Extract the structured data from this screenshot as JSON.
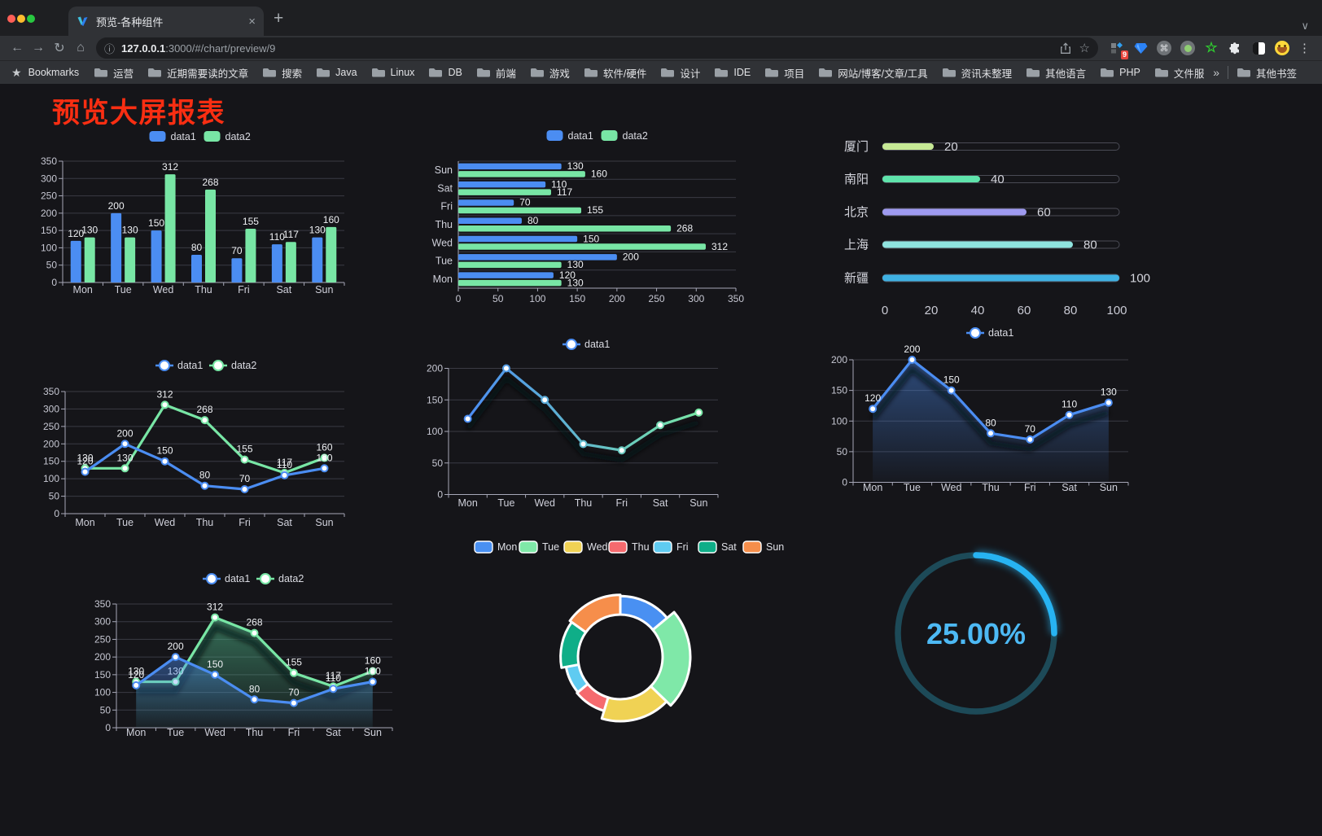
{
  "browser": {
    "tab_title": "预览-各种组件",
    "close_glyph": "×",
    "new_tab_glyph": "+",
    "chevron_glyph": "∨",
    "nav": {
      "back": "←",
      "forward": "→",
      "reload": "↻",
      "home": "⌂"
    },
    "url": {
      "info_glyph": "ⓘ",
      "host": "127.0.0.1",
      "rest": ":3000/#/chart/preview/9"
    },
    "actions": {
      "star": "☆",
      "menu": "⋮"
    },
    "extensions_badge": "9",
    "bookmarks_bar": {
      "star_glyph": "★",
      "label": "Bookmarks",
      "items": [
        "运营",
        "近期需要读的文章",
        "搜索",
        "Java",
        "Linux",
        "DB",
        "前端",
        "游戏",
        "软件/硬件",
        "设计",
        "IDE",
        "项目",
        "网站/博客/文章/工具",
        "资讯未整理",
        "其他语言",
        "PHP",
        "文件服务器"
      ],
      "overflow_glyph": "»",
      "other_bookmarks": "其他书签"
    }
  },
  "page": {
    "title": "预览大屏报表",
    "title_color": "#f92e12"
  },
  "chart_data": {
    "categories": [
      "Mon",
      "Tue",
      "Wed",
      "Thu",
      "Fri",
      "Sat",
      "Sun"
    ],
    "series": {
      "data1": [
        120,
        200,
        150,
        80,
        70,
        110,
        130
      ],
      "data2": [
        130,
        130,
        312,
        268,
        155,
        117,
        160
      ]
    },
    "colors": {
      "data1": "#4b8df2",
      "data2": "#78e6a5"
    },
    "bar_grouped": {
      "type": "bar",
      "legend": [
        "data1",
        "data2"
      ],
      "ylim": [
        0,
        350
      ],
      "yticks": [
        0,
        50,
        100,
        150,
        200,
        250,
        300,
        350
      ]
    },
    "bar_horizontal": {
      "type": "bar",
      "legend": [
        "data1",
        "data2"
      ],
      "orientation": "horizontal",
      "categories_top_to_bottom": [
        "Sun",
        "Sat",
        "Fri",
        "Thu",
        "Wed",
        "Tue",
        "Mon"
      ],
      "xlim": [
        0,
        350
      ],
      "xticks": [
        0,
        50,
        100,
        150,
        200,
        250,
        300,
        350
      ]
    },
    "progress_bars": {
      "type": "bar",
      "orientation": "horizontal",
      "xlim": [
        0,
        100
      ],
      "xticks": [
        0,
        20,
        40,
        60,
        80,
        100
      ],
      "rows": [
        {
          "label": "厦门",
          "value": 20,
          "color": "#c6e995"
        },
        {
          "label": "南阳",
          "value": 40,
          "color": "#5fe3ab"
        },
        {
          "label": "北京",
          "value": 60,
          "color": "#9e9af0"
        },
        {
          "label": "上海",
          "value": 80,
          "color": "#8fe3df"
        },
        {
          "label": "新疆",
          "value": 100,
          "color": "#3fb1e3"
        }
      ]
    },
    "line_two": {
      "type": "line",
      "legend": [
        "data1",
        "data2"
      ],
      "ylim": [
        0,
        350
      ],
      "yticks": [
        0,
        50,
        100,
        150,
        200,
        250,
        300,
        350
      ],
      "labels": true
    },
    "line_gradient": {
      "type": "line",
      "legend": [
        "data1"
      ],
      "ylim": [
        0,
        200
      ],
      "yticks": [
        0,
        50,
        100,
        150,
        200
      ],
      "gradient": [
        "#4b8df2",
        "#78e6a5"
      ],
      "shadow": true,
      "labels": false
    },
    "line_area": {
      "type": "line",
      "legend": [
        "data1"
      ],
      "ylim": [
        0,
        200
      ],
      "yticks": [
        0,
        50,
        100,
        150,
        200
      ],
      "labels": true,
      "area": true
    },
    "area_two": {
      "type": "area",
      "legend": [
        "data1",
        "data2"
      ],
      "ylim": [
        0,
        350
      ],
      "yticks": [
        0,
        50,
        100,
        150,
        200,
        250,
        300,
        350
      ],
      "labels": true
    },
    "pie_rose": {
      "type": "pie",
      "legend": [
        "Mon",
        "Tue",
        "Wed",
        "Thu",
        "Fri",
        "Sat",
        "Sun"
      ],
      "slices": [
        {
          "name": "Mon",
          "value": 120,
          "color": "#4990f2"
        },
        {
          "name": "Tue",
          "value": 200,
          "color": "#7fe8a8"
        },
        {
          "name": "Wed",
          "value": 150,
          "color": "#f0d254"
        },
        {
          "name": "Thu",
          "value": 80,
          "color": "#f56a6e"
        },
        {
          "name": "Fri",
          "value": 70,
          "color": "#5fcbf1"
        },
        {
          "name": "Sat",
          "value": 110,
          "color": "#0fae88"
        },
        {
          "name": "Sun",
          "value": 130,
          "color": "#f68e4b"
        }
      ]
    },
    "gauge": {
      "type": "gauge",
      "label": "25.00%",
      "percent": 25,
      "color": "#27b3f2",
      "track": "#1d4a58",
      "text_color": "#4db9f4"
    }
  }
}
